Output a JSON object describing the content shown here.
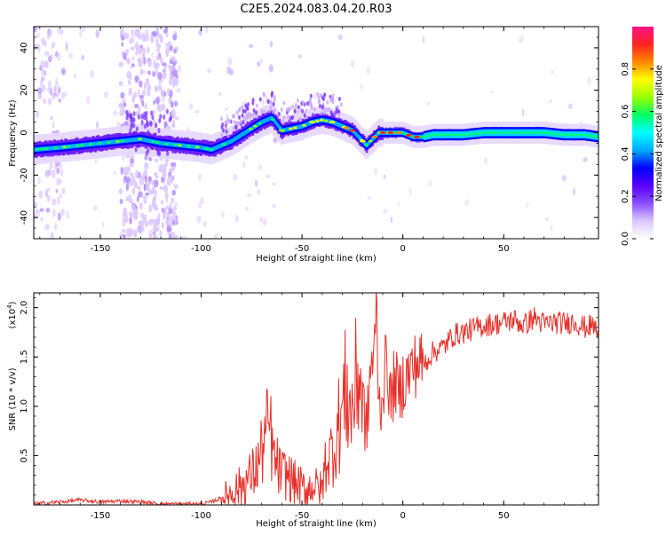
{
  "figure_title": "C2E5.2024.083.04.20.R03",
  "chart_data": [
    {
      "type": "heatmap",
      "title": "C2E5.2024.083.04.20.R03",
      "xlabel": "Height of straight line (km)",
      "ylabel": "Frequency (Hz)",
      "xlim": [
        -183,
        97
      ],
      "ylim": [
        -50,
        50
      ],
      "xticks": [
        -150,
        -100,
        -50,
        0,
        50
      ],
      "yticks": [
        -40,
        -20,
        0,
        20,
        40
      ],
      "ytick_labels": [
        "-40",
        "-20",
        "0",
        "20",
        "40"
      ],
      "colorbar": {
        "label": "Normalized spectral amplitude",
        "range": [
          0,
          1
        ],
        "ticks": [
          0.0,
          0.2,
          0.4,
          0.6,
          0.8
        ],
        "tick_labels": [
          "0.0",
          "0.2",
          "0.4",
          "0.6",
          "0.8"
        ],
        "colormap": [
          "#ffffff",
          "#dcc8ff",
          "#8a4dff",
          "#5a00ff",
          "#0000ff",
          "#00aaff",
          "#00ffff",
          "#00ff66",
          "#99ff00",
          "#ffff00",
          "#ff8800",
          "#ff2222",
          "#ff1188"
        ]
      },
      "ridge_centerline": {
        "x": [
          -183,
          -170,
          -160,
          -150,
          -140,
          -130,
          -120,
          -110,
          -100,
          -95,
          -90,
          -85,
          -80,
          -75,
          -70,
          -65,
          -60,
          -55,
          -50,
          -45,
          -40,
          -35,
          -30,
          -25,
          -22,
          -20,
          -18,
          -15,
          -12,
          -10,
          -5,
          0,
          5,
          10,
          15,
          20,
          30,
          40,
          50,
          60,
          70,
          80,
          90,
          97
        ],
        "y": [
          -8,
          -7,
          -6,
          -5,
          -4,
          -3,
          -5,
          -6,
          -7,
          -8,
          -6,
          -4,
          -1,
          2,
          5,
          7,
          1,
          2,
          3,
          5,
          6,
          5,
          3,
          1,
          -2,
          -4,
          -6,
          -3,
          0,
          0,
          0,
          0,
          -2,
          -2,
          -1,
          -1,
          -1,
          0,
          0,
          0,
          0,
          -1,
          -1,
          -2
        ]
      }
    },
    {
      "type": "line",
      "xlabel": "Height of straight line (km)",
      "ylabel": "SNR (10 * v/v)",
      "y_multiplier_label": "(x10",
      "y_multiplier_exp": "4",
      "xlim": [
        -183,
        97
      ],
      "ylim": [
        0,
        2.15
      ],
      "xticks": [
        -150,
        -100,
        -50,
        0,
        50
      ],
      "yticks": [
        0.5,
        1.0,
        1.5,
        2.0
      ],
      "ytick_labels": [
        "0.5",
        "1.0",
        "1.5",
        "2.0"
      ],
      "series": [
        {
          "name": "SNR",
          "color": "#e8302a",
          "x": [
            -183,
            -170,
            -160,
            -150,
            -140,
            -130,
            -120,
            -110,
            -100,
            -95,
            -90,
            -85,
            -80,
            -75,
            -72,
            -70,
            -68,
            -66,
            -64,
            -62,
            -60,
            -58,
            -55,
            -52,
            -50,
            -47,
            -45,
            -42,
            -40,
            -38,
            -36,
            -34,
            -32,
            -30,
            -28,
            -26,
            -24,
            -22,
            -20,
            -18,
            -16,
            -14,
            -13,
            -12,
            -10,
            -8,
            -6,
            -4,
            -2,
            0,
            2,
            5,
            8,
            10,
            15,
            20,
            25,
            30,
            40,
            50,
            55,
            60,
            65,
            70,
            75,
            80,
            85,
            90,
            95,
            97
          ],
          "y": [
            0.01,
            0.03,
            0.05,
            0.03,
            0.04,
            0.03,
            0.01,
            0.01,
            0.01,
            0.03,
            0.07,
            0.12,
            0.2,
            0.3,
            0.4,
            0.55,
            0.7,
            0.8,
            0.45,
            0.38,
            0.3,
            0.32,
            0.25,
            0.2,
            0.18,
            0.15,
            0.22,
            0.16,
            0.16,
            0.48,
            0.5,
            0.62,
            0.8,
            0.95,
            1.2,
            0.9,
            1.1,
            1.38,
            1.1,
            0.7,
            1.4,
            1.55,
            2.1,
            0.95,
            1.15,
            1.5,
            1.0,
            1.3,
            1.1,
            1.25,
            1.3,
            1.4,
            1.45,
            1.42,
            1.55,
            1.6,
            1.72,
            1.75,
            1.82,
            1.85,
            1.88,
            1.82,
            1.9,
            1.83,
            1.85,
            1.84,
            1.86,
            1.8,
            1.82,
            1.7
          ]
        }
      ]
    }
  ]
}
